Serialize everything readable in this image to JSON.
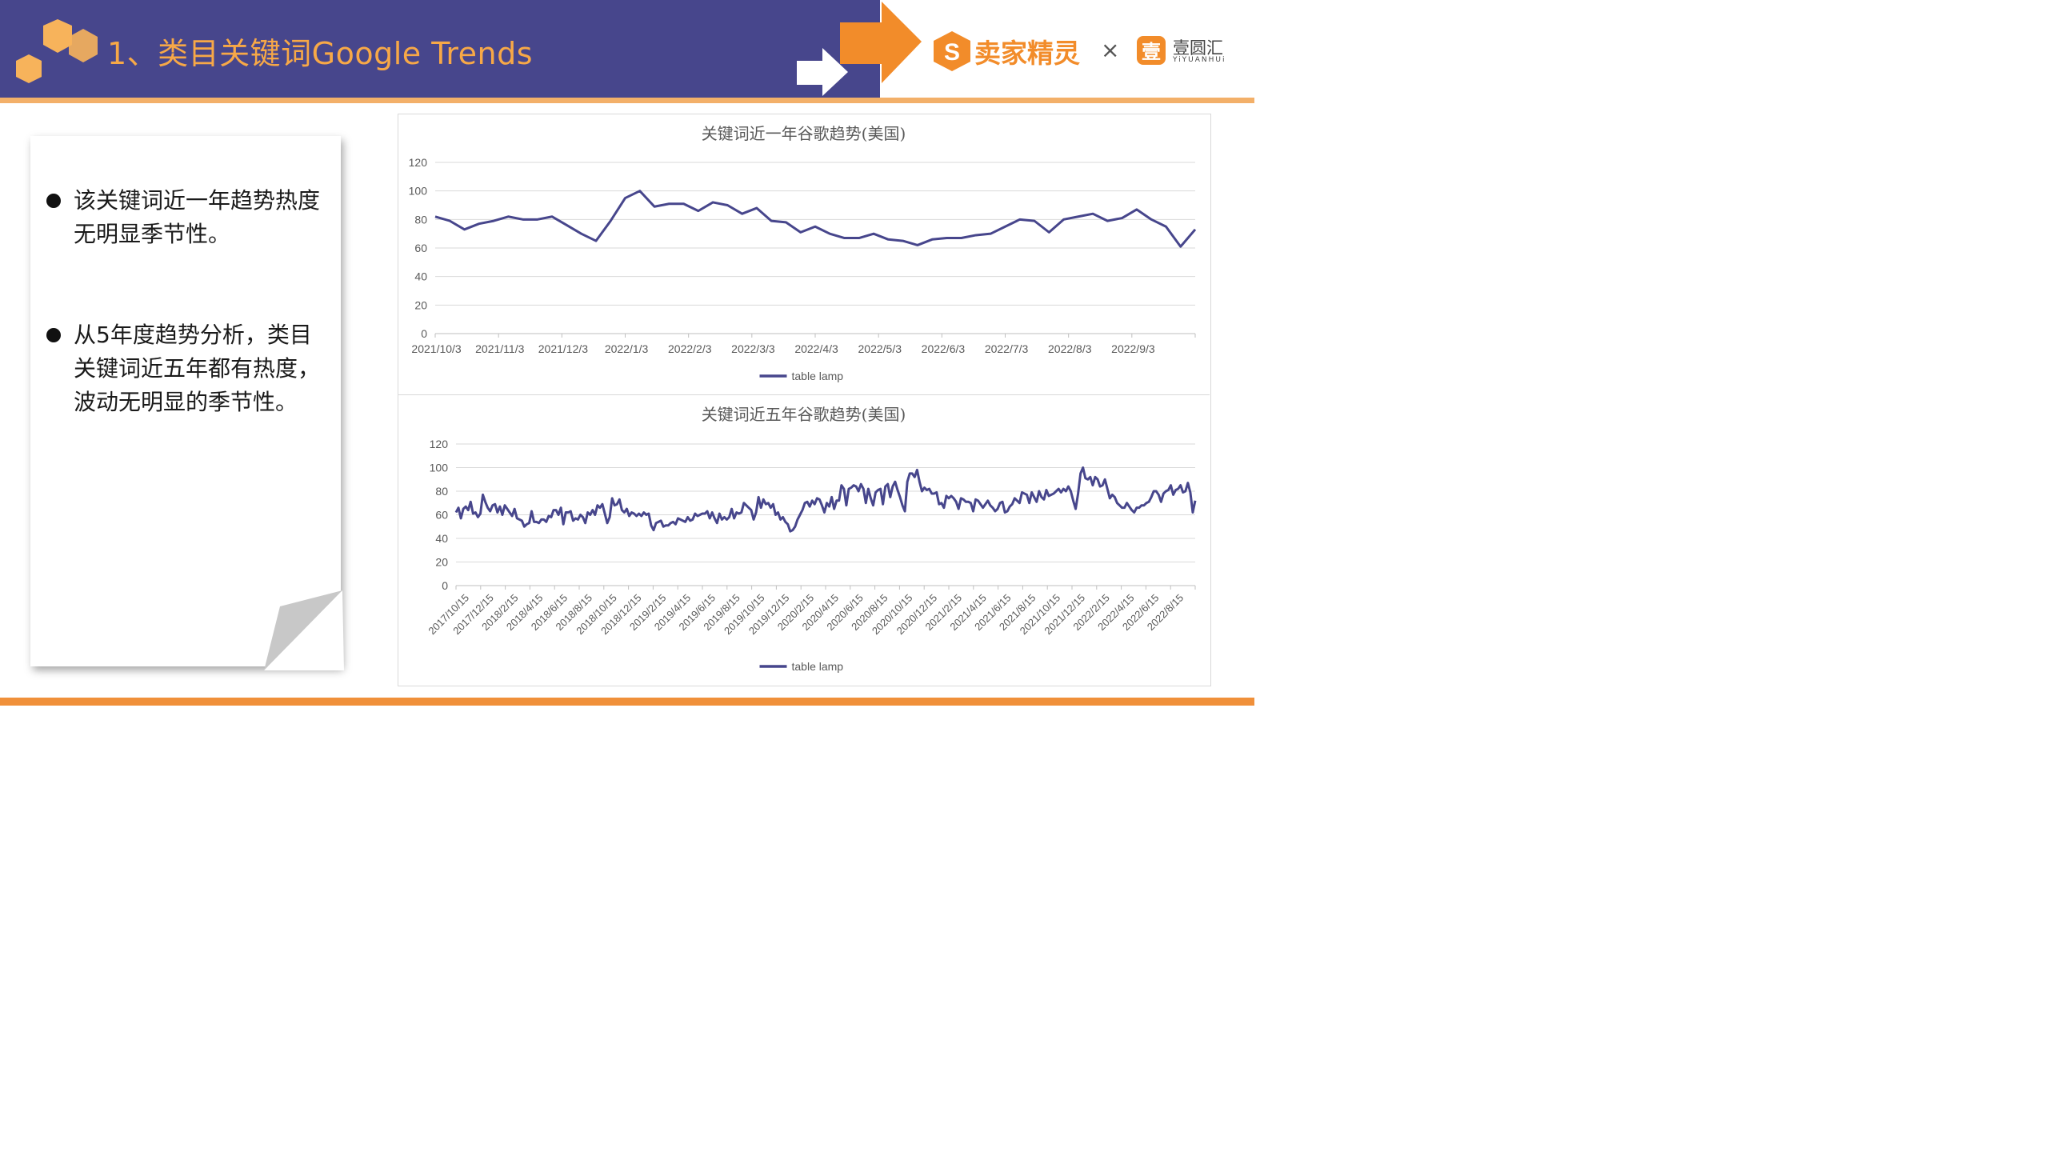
{
  "header": {
    "title": "1、类目关键词Google Trends",
    "brand_primary": "卖家精灵",
    "brand_times": "×",
    "brand_secondary": "壹圆汇",
    "brand_secondary_sub": "YiYUANHUi",
    "brand_secondary_icon_glyph": "壹",
    "colors": {
      "header_bg": "#47468c",
      "accent": "#f28c2a",
      "title": "#f7a847"
    }
  },
  "bullets": [
    {
      "text": "该关键词近一年趋势热度无明显季节性。"
    },
    {
      "text": "从5年度趋势分析，类目关键词近五年都有热度，波动无明显的季节性。"
    }
  ],
  "chart_data": [
    {
      "type": "line",
      "title": "关键词近一年谷歌趋势(美国)",
      "x_tick_labels": [
        "2021/10/3",
        "2021/11/3",
        "2021/12/3",
        "2022/1/3",
        "2022/2/3",
        "2022/3/3",
        "2022/4/3",
        "2022/5/3",
        "2022/6/3",
        "2022/7/3",
        "2022/8/3",
        "2022/9/3"
      ],
      "ylim": [
        0,
        120
      ],
      "y_ticks": [
        0,
        20,
        40,
        60,
        80,
        100,
        120
      ],
      "legend_position": "bottom",
      "grid": true,
      "series": [
        {
          "name": "table lamp",
          "color": "#47468c",
          "values": [
            82,
            79,
            73,
            77,
            79,
            82,
            80,
            80,
            82,
            76,
            70,
            65,
            79,
            95,
            100,
            89,
            91,
            91,
            86,
            92,
            90,
            84,
            88,
            79,
            78,
            71,
            75,
            70,
            67,
            67,
            70,
            66,
            65,
            62,
            66,
            67,
            67,
            69,
            70,
            75,
            80,
            79,
            71,
            80,
            82,
            84,
            79,
            81,
            87,
            80,
            75,
            61,
            73
          ]
        }
      ]
    },
    {
      "type": "line",
      "title": "关键词近五年谷歌趋势(美国)",
      "x_tick_labels": [
        "2017/10/15",
        "2017/12/15",
        "2018/2/15",
        "2018/4/15",
        "2018/6/15",
        "2018/8/15",
        "2018/10/15",
        "2018/12/15",
        "2019/2/15",
        "2019/4/15",
        "2019/6/15",
        "2019/8/15",
        "2019/10/15",
        "2019/12/15",
        "2020/2/15",
        "2020/4/15",
        "2020/6/15",
        "2020/8/15",
        "2020/10/15",
        "2020/12/15",
        "2021/2/15",
        "2021/4/15",
        "2021/6/15",
        "2021/8/15",
        "2021/10/15",
        "2021/12/15",
        "2022/2/15",
        "2022/4/15",
        "2022/6/15",
        "2022/8/15"
      ],
      "ylim": [
        0,
        120
      ],
      "y_ticks": [
        0,
        20,
        40,
        60,
        80,
        100,
        120
      ],
      "legend_position": "bottom",
      "grid": true,
      "series": [
        {
          "name": "table lamp",
          "color": "#47468c",
          "values": [
            62,
            66,
            57,
            65,
            67,
            64,
            71,
            61,
            62,
            58,
            61,
            77,
            71,
            66,
            63,
            68,
            69,
            62,
            67,
            60,
            68,
            65,
            62,
            59,
            65,
            57,
            56,
            55,
            50,
            52,
            53,
            63,
            54,
            54,
            53,
            56,
            56,
            54,
            59,
            58,
            64,
            64,
            60,
            66,
            52,
            62,
            62,
            63,
            55,
            57,
            56,
            60,
            58,
            53,
            62,
            60,
            64,
            60,
            68,
            66,
            69,
            61,
            53,
            58,
            74,
            68,
            69,
            73,
            64,
            62,
            65,
            59,
            62,
            61,
            59,
            61,
            59,
            62,
            60,
            61,
            51,
            47,
            53,
            54,
            55,
            50,
            51,
            51,
            53,
            54,
            52,
            57,
            56,
            55,
            54,
            58,
            55,
            56,
            61,
            59,
            60,
            61,
            61,
            63,
            57,
            62,
            57,
            53,
            61,
            56,
            58,
            56,
            58,
            65,
            57,
            62,
            61,
            62,
            70,
            68,
            66,
            64,
            56,
            62,
            75,
            66,
            73,
            69,
            70,
            66,
            69,
            60,
            62,
            56,
            58,
            54,
            52,
            46,
            47,
            50,
            56,
            60,
            64,
            70,
            71,
            67,
            72,
            69,
            74,
            73,
            68,
            62,
            70,
            67,
            75,
            65,
            72,
            72,
            85,
            82,
            68,
            82,
            83,
            85,
            84,
            80,
            86,
            82,
            70,
            82,
            74,
            68,
            79,
            81,
            82,
            69,
            84,
            86,
            75,
            84,
            88,
            81,
            75,
            68,
            63,
            88,
            95,
            95,
            92,
            98,
            88,
            80,
            83,
            81,
            82,
            78,
            78,
            79,
            69,
            70,
            66,
            76,
            74,
            76,
            74,
            71,
            65,
            74,
            73,
            71,
            71,
            70,
            63,
            73,
            72,
            69,
            66,
            69,
            72,
            68,
            66,
            63,
            65,
            70,
            71,
            62,
            63,
            67,
            69,
            74,
            72,
            70,
            79,
            78,
            77,
            70,
            79,
            75,
            71,
            80,
            75,
            73,
            81,
            76,
            77,
            78,
            80,
            82,
            79,
            82,
            80,
            84,
            80,
            72,
            65,
            78,
            95,
            100,
            91,
            90,
            92,
            85,
            92,
            90,
            84,
            85,
            90,
            82,
            74,
            77,
            75,
            70,
            68,
            66,
            66,
            70,
            67,
            64,
            62,
            66,
            66,
            68,
            68,
            70,
            71,
            75,
            80,
            80,
            77,
            71,
            78,
            80,
            81,
            85,
            77,
            81,
            82,
            85,
            79,
            80,
            87,
            79,
            62,
            72
          ]
        }
      ]
    }
  ]
}
